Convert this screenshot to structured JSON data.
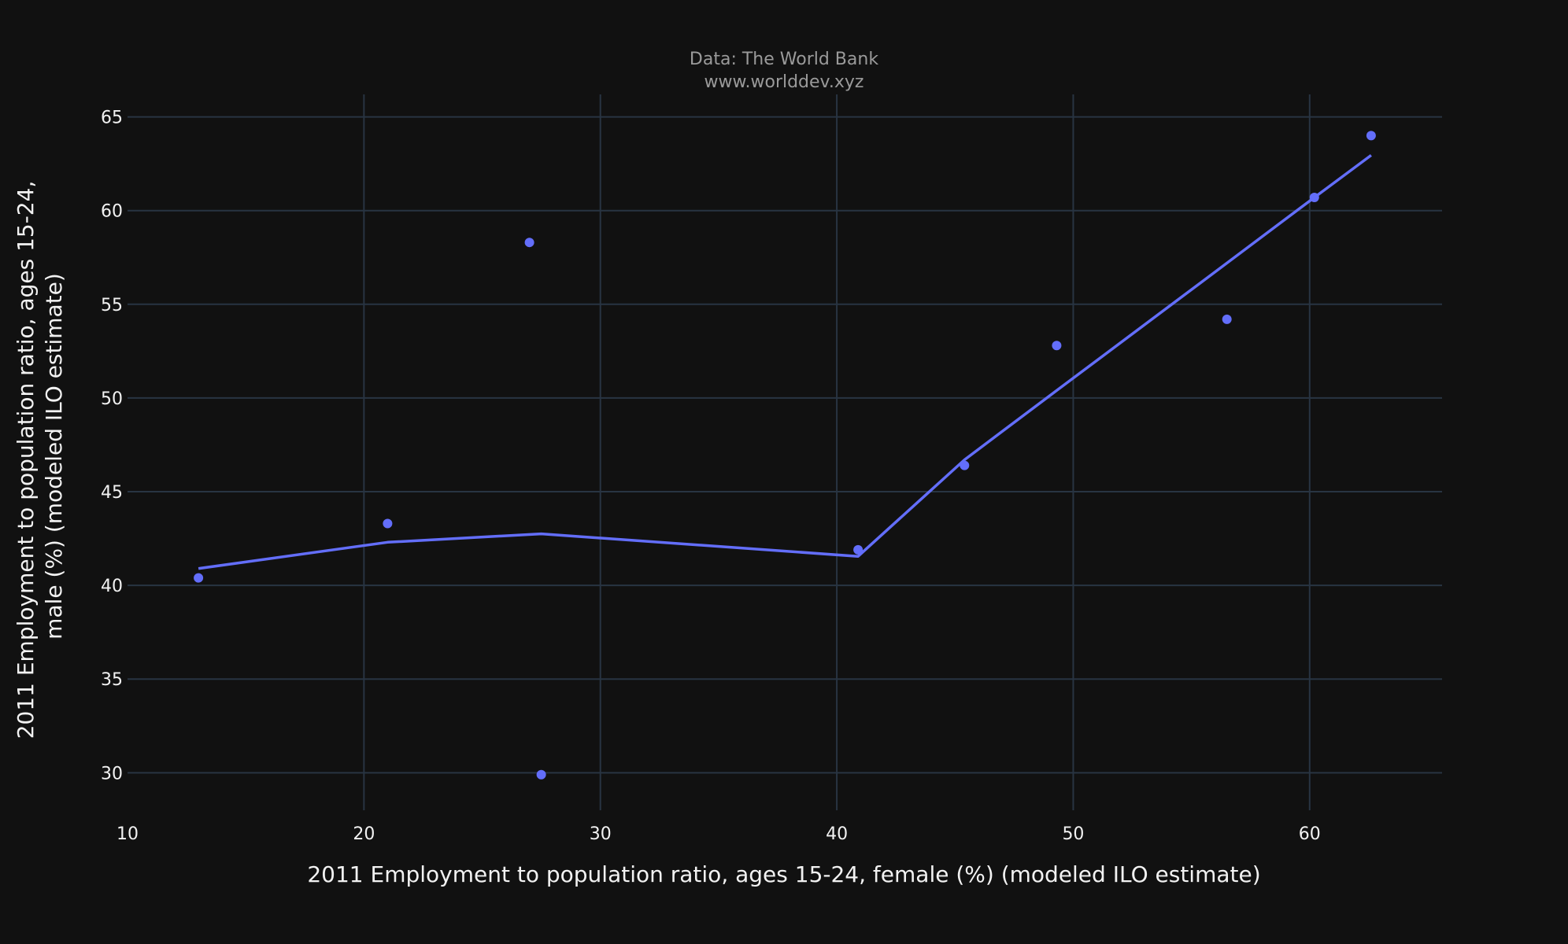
{
  "source": {
    "line1": "Data: The World Bank",
    "line2": "www.worlddev.xyz"
  },
  "chart_data": {
    "type": "scatter",
    "xlabel": "2011 Employment to population ratio, ages 15-24, female (%) (modeled ILO estimate)",
    "ylabel_lines": [
      "2011 Employment to population ratio, ages 15-24,",
      "male (%) (modeled ILO estimate)"
    ],
    "xlim": [
      10,
      65.6
    ],
    "ylim": [
      28,
      66.2
    ],
    "x_ticks": [
      10,
      20,
      30,
      40,
      50,
      60
    ],
    "y_ticks": [
      30,
      35,
      40,
      45,
      50,
      55,
      60,
      65
    ],
    "grid": true,
    "color": "#636efa",
    "background": "#111111",
    "grid_color": "#283442",
    "points": [
      {
        "x": 13.0,
        "y": 40.4
      },
      {
        "x": 21.0,
        "y": 43.3
      },
      {
        "x": 27.0,
        "y": 58.3
      },
      {
        "x": 27.5,
        "y": 29.9
      },
      {
        "x": 40.9,
        "y": 41.9
      },
      {
        "x": 45.4,
        "y": 46.4
      },
      {
        "x": 49.3,
        "y": 52.8
      },
      {
        "x": 56.5,
        "y": 54.2
      },
      {
        "x": 60.2,
        "y": 60.7
      },
      {
        "x": 62.6,
        "y": 64.0
      }
    ],
    "trend": [
      {
        "x": 13.0,
        "y": 40.9
      },
      {
        "x": 21.0,
        "y": 42.3
      },
      {
        "x": 27.5,
        "y": 42.75
      },
      {
        "x": 40.9,
        "y": 41.55
      },
      {
        "x": 45.4,
        "y": 46.7
      },
      {
        "x": 49.3,
        "y": 50.4
      },
      {
        "x": 56.5,
        "y": 57.2
      },
      {
        "x": 60.2,
        "y": 60.7
      },
      {
        "x": 62.6,
        "y": 62.95
      }
    ]
  }
}
